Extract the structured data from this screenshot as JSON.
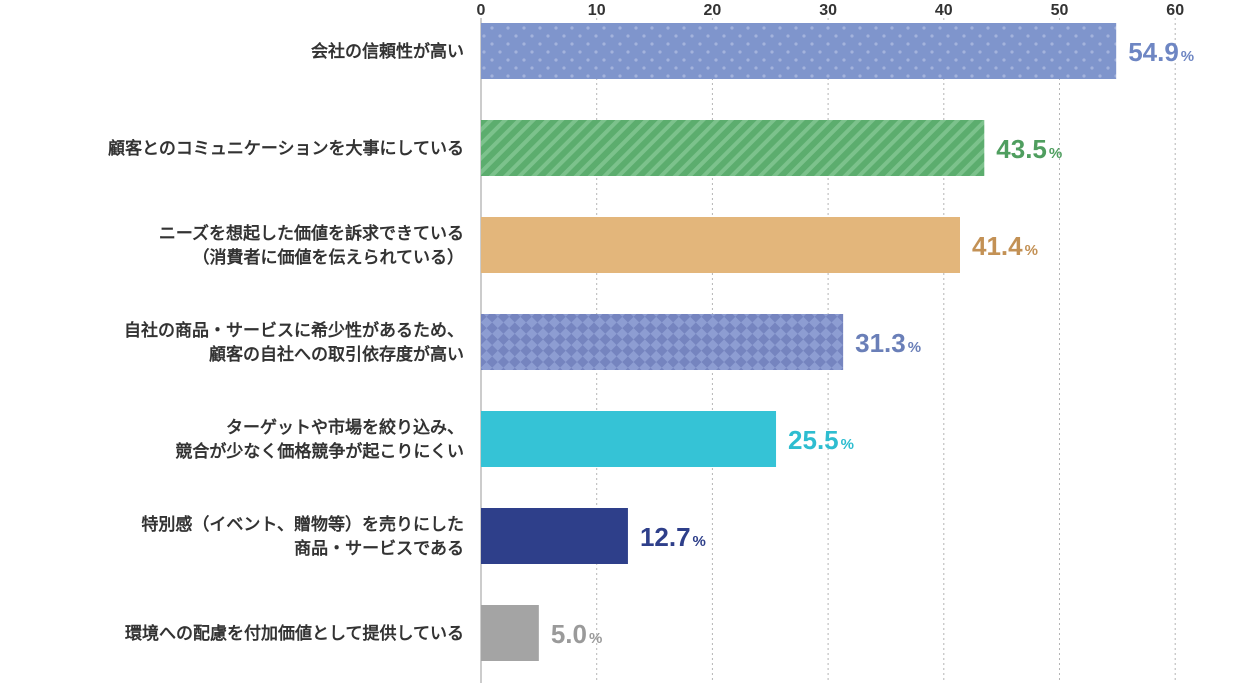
{
  "chart_data": {
    "type": "bar",
    "orientation": "horizontal",
    "xlim": [
      0,
      60
    ],
    "ticks": [
      "0",
      "10",
      "20",
      "30",
      "40",
      "50",
      "60"
    ],
    "grid": true,
    "unit": "%",
    "categories": [
      [
        "会社の信頼性が高い"
      ],
      [
        "顧客とのコミュニケーションを大事にしている"
      ],
      [
        "ニーズを想起した価値を訴求できている",
        "（消費者に価値を伝えられている）"
      ],
      [
        "自社の商品・サービスに希少性があるため、",
        "顧客の自社への取引依存度が高い"
      ],
      [
        "ターゲットや市場を絞り込み、",
        "競合が少なく価格競争が起こりにくい"
      ],
      [
        "特別感（イベント、贈物等）を売りにした",
        "商品・サービスである"
      ],
      [
        "環境への配慮を付加価値として提供している"
      ]
    ],
    "values": [
      54.9,
      43.5,
      41.4,
      31.3,
      25.5,
      12.7,
      5.0
    ],
    "value_labels": [
      "54.9",
      "43.5",
      "41.4",
      "31.3",
      "25.5",
      "12.7",
      "5.0"
    ],
    "colors": [
      "#7f95cc",
      "#5cad6e",
      "#e3b67b",
      "#7f8fc6",
      "#35c3d6",
      "#2e3f8a",
      "#a4a4a4"
    ],
    "label_colors": [
      "#6e86c3",
      "#4f9e5f",
      "#c39155",
      "#6a7fb8",
      "#2ebdd0",
      "#2e3f8a",
      "#9a9a9a"
    ],
    "patterns": [
      "dots",
      "stripes",
      "solid",
      "checker",
      "solid",
      "solid",
      "solid"
    ]
  }
}
